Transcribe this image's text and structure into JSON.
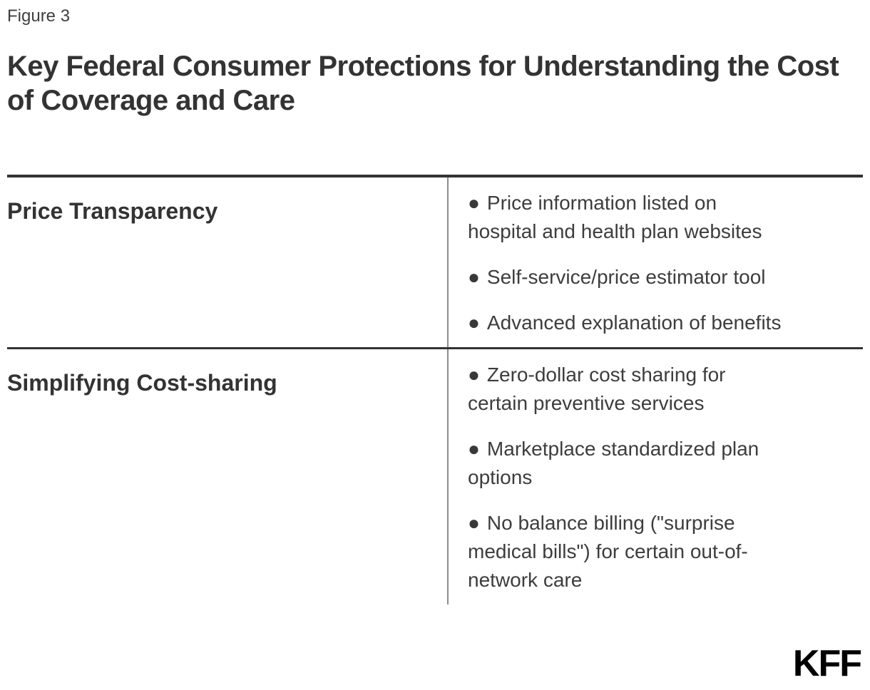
{
  "figure_label": "Figure 3",
  "title": {
    "line1": "Key Federal Consumer Protections for Understanding the Cost",
    "line2": "of Coverage and Care"
  },
  "table": {
    "bullet_glyph": "●",
    "rows": [
      {
        "category": "Price Transparency",
        "items": [
          "Price information listed on hospital and health plan websites",
          "Self-service/price estimator tool",
          "Advanced explanation of benefits"
        ]
      },
      {
        "category": "Simplifying Cost-sharing",
        "items": [
          "Zero-dollar cost sharing for certain preventive services",
          "Marketplace standardized plan options",
          "No balance billing (\"surprise medical bills\") for certain out-of-network care"
        ]
      }
    ]
  },
  "logo_text": "KFF",
  "colors": {
    "heading_text": "#333333",
    "body_text": "#3d3d3d",
    "rule_dark": "#333333",
    "rule_gray": "#8c8c8c",
    "logo": "#000000",
    "background": "#ffffff"
  }
}
